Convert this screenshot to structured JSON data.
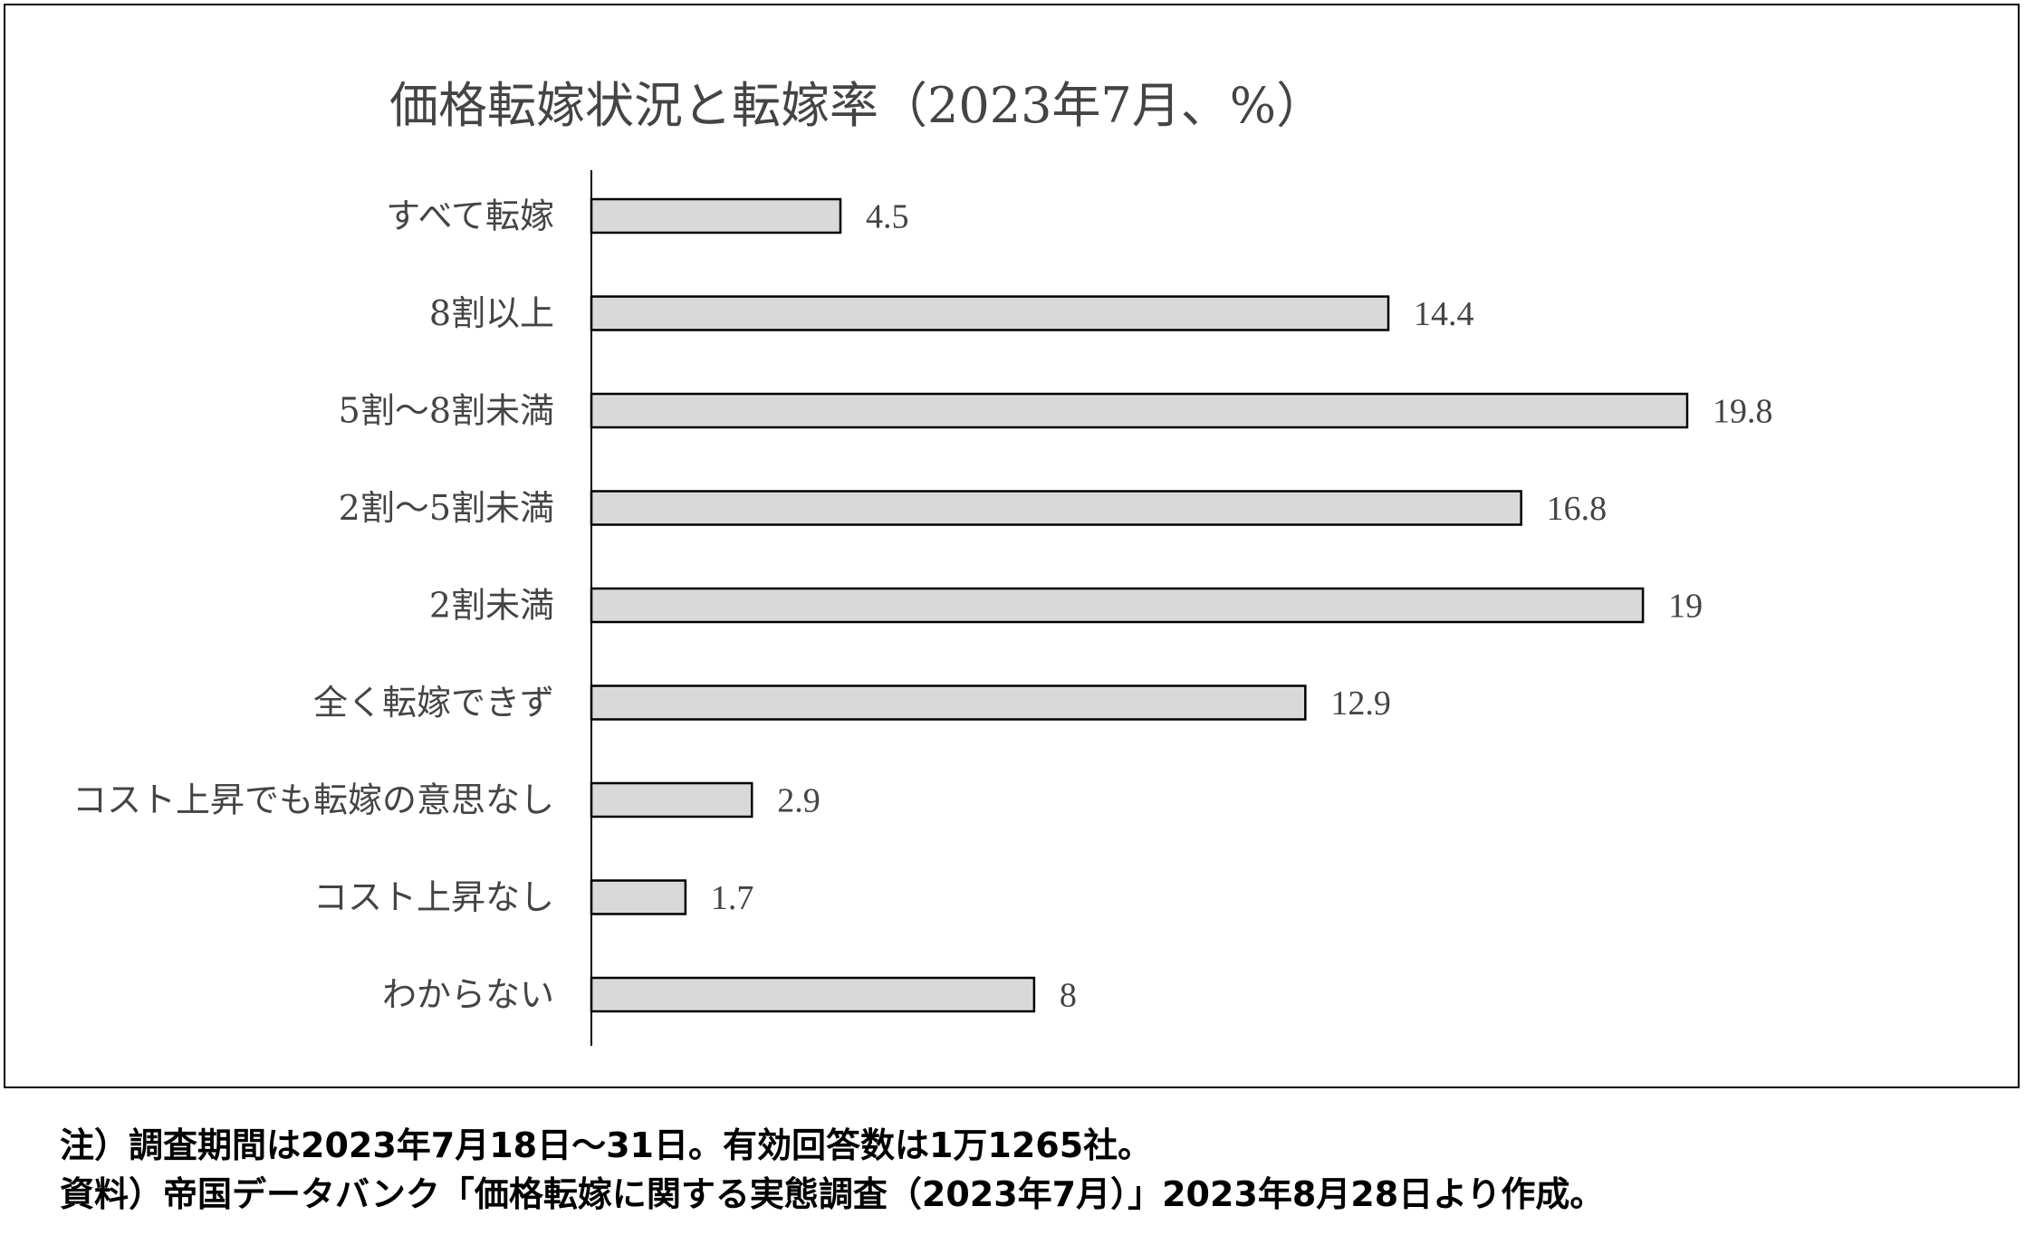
{
  "chart_data": {
    "type": "bar",
    "orientation": "horizontal",
    "title": "価格転嫁状況と転嫁率（2023年7月、%）",
    "categories": [
      "すべて転嫁",
      "8割以上",
      "5割～8割未満",
      "2割～5割未満",
      "2割未満",
      "全く転嫁できず",
      "コスト上昇でも転嫁の意思なし",
      "コスト上昇なし",
      "わからない"
    ],
    "values": [
      4.5,
      14.4,
      19.8,
      16.8,
      19,
      12.9,
      2.9,
      1.7,
      8
    ],
    "value_labels": [
      "4.5",
      "14.4",
      "19.8",
      "16.8",
      "19",
      "12.9",
      "2.9",
      "1.7",
      "8"
    ],
    "xlim": [
      0,
      22
    ],
    "bar_color": "#d9d9d9",
    "bar_edge_color": "#000000",
    "grid": false
  },
  "notes": {
    "line1": "注）調査期間は2023年7月18日～31日。有効回答数は1万1265社。",
    "line2": "資料）帝国データバンク「価格転嫁に関する実態調査（2023年7月）」2023年8月28日より作成。"
  }
}
